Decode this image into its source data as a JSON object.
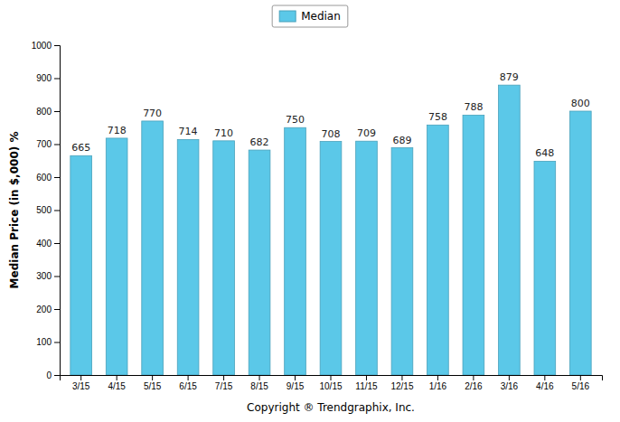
{
  "chart_data": {
    "type": "bar",
    "categories": [
      "3/15",
      "4/15",
      "5/15",
      "6/15",
      "7/15",
      "8/15",
      "9/15",
      "10/15",
      "11/15",
      "12/15",
      "1/16",
      "2/16",
      "3/16",
      "4/16",
      "5/16"
    ],
    "series": [
      {
        "name": "Median",
        "color": "#5BC8E8",
        "values": [
          665,
          718,
          770,
          714,
          710,
          682,
          750,
          708,
          709,
          689,
          758,
          788,
          879,
          648,
          800
        ]
      }
    ],
    "ylabel": "Median Price (in $,000) %",
    "xlabel": "Copyright ® Trendgraphix, Inc.",
    "ylim": [
      0,
      1000
    ],
    "yticks": [
      0,
      100,
      200,
      300,
      400,
      500,
      600,
      700,
      800,
      900,
      1000
    ],
    "grid": false,
    "data_labels": true,
    "legend": "top"
  }
}
